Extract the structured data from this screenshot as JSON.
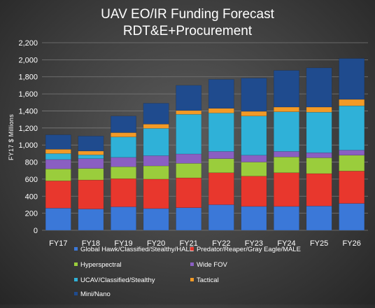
{
  "chart_data": {
    "type": "bar",
    "stacked": true,
    "title": "UAV EO/IR Funding Forecast",
    "subtitle": "RDT&E+Procurement",
    "ylabel": "FY17 $ Millions",
    "xlabel": "",
    "ylim": [
      0,
      2200
    ],
    "yticks": [
      0,
      200,
      400,
      600,
      800,
      1000,
      1200,
      1400,
      1600,
      1800,
      2000,
      2200
    ],
    "ytick_labels": [
      "0",
      "200",
      "400",
      "600",
      "800",
      "1,000",
      "1,200",
      "1,400",
      "1,600",
      "1,800",
      "2,000",
      "2,200"
    ],
    "grid": true,
    "legend_position": "bottom",
    "categories": [
      "FY17",
      "FY18",
      "FY19",
      "FY20",
      "FY21",
      "FY22",
      "FY23",
      "FY24",
      "FY25",
      "FY26"
    ],
    "series": [
      {
        "name": "Global Hawk/Classified/Stealthy/HALE",
        "color": "#3b78d8",
        "values": [
          260,
          250,
          275,
          255,
          265,
          300,
          280,
          280,
          285,
          315
        ]
      },
      {
        "name": "Predator/Reaper/Gray  Eagle/MALE",
        "color": "#e8372d",
        "values": [
          320,
          340,
          330,
          345,
          350,
          375,
          355,
          395,
          380,
          380
        ]
      },
      {
        "name": "Hyperspectral",
        "color": "#9acd3c",
        "values": [
          140,
          135,
          140,
          155,
          170,
          165,
          165,
          185,
          185,
          185
        ]
      },
      {
        "name": "Wide FOV",
        "color": "#8a5fc2",
        "values": [
          110,
          115,
          110,
          120,
          110,
          85,
          80,
          65,
          60,
          60
        ]
      },
      {
        "name": "UCAV/Classified/Stealthy",
        "color": "#2fb1d8",
        "values": [
          70,
          45,
          240,
          320,
          465,
          450,
          460,
          465,
          475,
          520
        ]
      },
      {
        "name": "Tactical",
        "color": "#f39a26",
        "values": [
          50,
          45,
          50,
          50,
          45,
          55,
          55,
          55,
          60,
          75
        ]
      },
      {
        "name": "Mini/Nano",
        "color": "#1f4b8e",
        "values": [
          170,
          175,
          195,
          245,
          295,
          340,
          390,
          430,
          460,
          480
        ]
      }
    ]
  }
}
